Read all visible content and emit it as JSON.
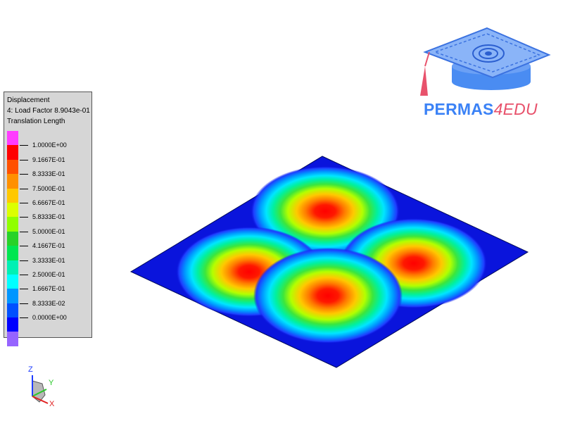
{
  "legend": {
    "title": "Displacement",
    "subtitle": "4: Load Factor 8.9043e-01",
    "quantity": "Translation Length",
    "colors": [
      "#ff3cff",
      "#ff0000",
      "#ff5000",
      "#ff9000",
      "#ffc800",
      "#dcff00",
      "#90ff00",
      "#28d228",
      "#00e650",
      "#00f0b4",
      "#00ffff",
      "#0096ff",
      "#0050ff",
      "#0000ff",
      "#9664ff"
    ],
    "values": [
      "1.0000E+00",
      "9.1667E-01",
      "8.3333E-01",
      "7.5000E-01",
      "6.6667E-01",
      "5.8333E-01",
      "5.0000E-01",
      "4.1667E-01",
      "3.3333E-01",
      "2.5000E-01",
      "1.6667E-01",
      "8.3333E-02",
      "0.0000E+00"
    ]
  },
  "logo": {
    "brand_blue": "PERMAS",
    "brand_pink": "4EDU",
    "blue_color": "#3b82f6",
    "pink_color": "#e8526c"
  },
  "triad": {
    "z_label": "Z",
    "y_label": "Y",
    "x_label": "X"
  },
  "model": {
    "plate_color": "#0a14dc",
    "peak_color": "#ff0000"
  }
}
